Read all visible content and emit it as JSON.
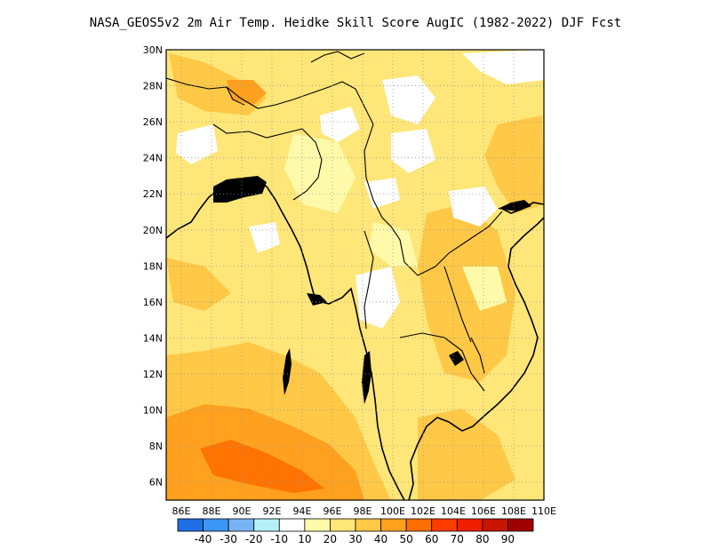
{
  "title": "NASA_GEOS5v2  2m Air Temp. Heidke Skill Score AugIC (1982-2022) DJF Fcst",
  "map": {
    "lat_labels": [
      "30N",
      "28N",
      "26N",
      "24N",
      "22N",
      "20N",
      "18N",
      "16N",
      "14N",
      "12N",
      "10N",
      "8N",
      "6N"
    ],
    "lon_labels": [
      "86E",
      "88E",
      "90E",
      "92E",
      "94E",
      "96E",
      "98E",
      "100E",
      "102E",
      "104E",
      "106E",
      "108E",
      "110E"
    ],
    "lon_range": [
      85,
      110
    ],
    "lat_range": [
      5,
      30
    ],
    "grid": true
  },
  "colorbar": {
    "colors": [
      "#1e6ee6",
      "#3c96f5",
      "#78b4f5",
      "#b4f0f5",
      "#ffffff",
      "#fffaaa",
      "#ffe678",
      "#ffc846",
      "#ffa01e",
      "#ff6e00",
      "#ff3c00",
      "#f01e00",
      "#c81400",
      "#a00000"
    ],
    "labels": [
      "-40",
      "-30",
      "-20",
      "-10",
      "10",
      "20",
      "30",
      "40",
      "50",
      "60",
      "70",
      "80",
      "90"
    ]
  }
}
